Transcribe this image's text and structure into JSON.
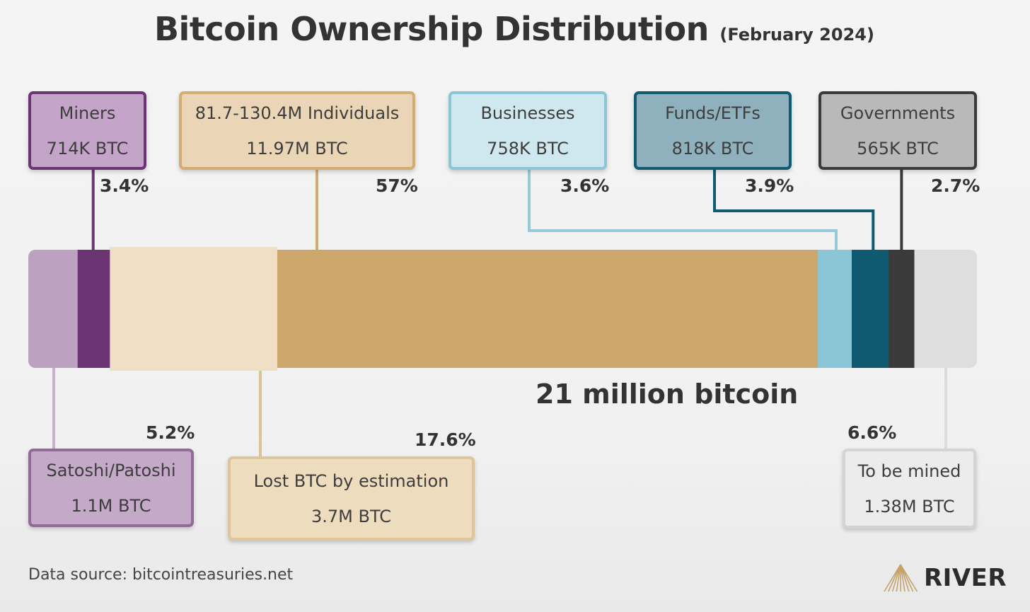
{
  "chart_data": {
    "type": "stacked-bar",
    "title": "Bitcoin Ownership Distribution",
    "subtitle": "(February 2024)",
    "total_label": "21 million bitcoin",
    "segments": [
      {
        "id": "satoshi",
        "name": "Satoshi/Patoshi",
        "btc_label": "1.1M BTC",
        "percent": 5.2,
        "percent_label": "5.2%",
        "color": "#bca1c0",
        "box_fill": "#c5a9c8",
        "box_border": "#936b98",
        "line_color": "#c9b0cc"
      },
      {
        "id": "miners",
        "name": "Miners",
        "btc_label": "714K BTC",
        "percent": 3.4,
        "percent_label": "3.4%",
        "color": "#6b3473",
        "box_fill": "#c4a4c8",
        "box_border": "#6b3473",
        "line_color": "#6b3473"
      },
      {
        "id": "lost",
        "name": "Lost BTC by estimation",
        "btc_label": "3.7M BTC",
        "percent": 17.6,
        "percent_label": "17.6%",
        "color": "#f0dfc4",
        "box_fill": "#eedcbe",
        "box_border": "#dfc59a",
        "line_color": "#dcc297"
      },
      {
        "id": "individuals",
        "name": "81.7-130.4M Individuals",
        "btc_label": "11.97M BTC",
        "percent": 57,
        "percent_label": "57%",
        "color": "#cca66a",
        "box_fill": "#ead6b6",
        "box_border": "#d2ad72",
        "line_color": "#d0ab70"
      },
      {
        "id": "businesses",
        "name": "Businesses",
        "btc_label": "758K BTC",
        "percent": 3.6,
        "percent_label": "3.6%",
        "color": "#8ac6d6",
        "box_fill": "#cfe8ef",
        "box_border": "#8ac6d6",
        "line_color": "#95cad9"
      },
      {
        "id": "funds",
        "name": "Funds/ETFs",
        "btc_label": "818K BTC",
        "percent": 3.9,
        "percent_label": "3.9%",
        "color": "#0f5a70",
        "box_fill": "#8fb1bd",
        "box_border": "#0f5a70",
        "line_color": "#0f5a70"
      },
      {
        "id": "governments",
        "name": "Governments",
        "btc_label": "565K BTC",
        "percent": 2.7,
        "percent_label": "2.7%",
        "color": "#3a3a3a",
        "box_fill": "#b9b9b9",
        "box_border": "#3a3a3a",
        "line_color": "#3a3a3a"
      },
      {
        "id": "to_mine",
        "name": "To be mined",
        "btc_label": "1.38M BTC",
        "percent": 6.6,
        "percent_label": "6.6%",
        "color": "#dedede",
        "box_fill": "#ececec",
        "box_border": "#d4d4d4",
        "line_color": "#dcdcdc"
      }
    ]
  },
  "footer": {
    "source": "Data source: bitcointreasuries.net",
    "brand": "RIVER",
    "brand_color": "#c4a26a"
  }
}
